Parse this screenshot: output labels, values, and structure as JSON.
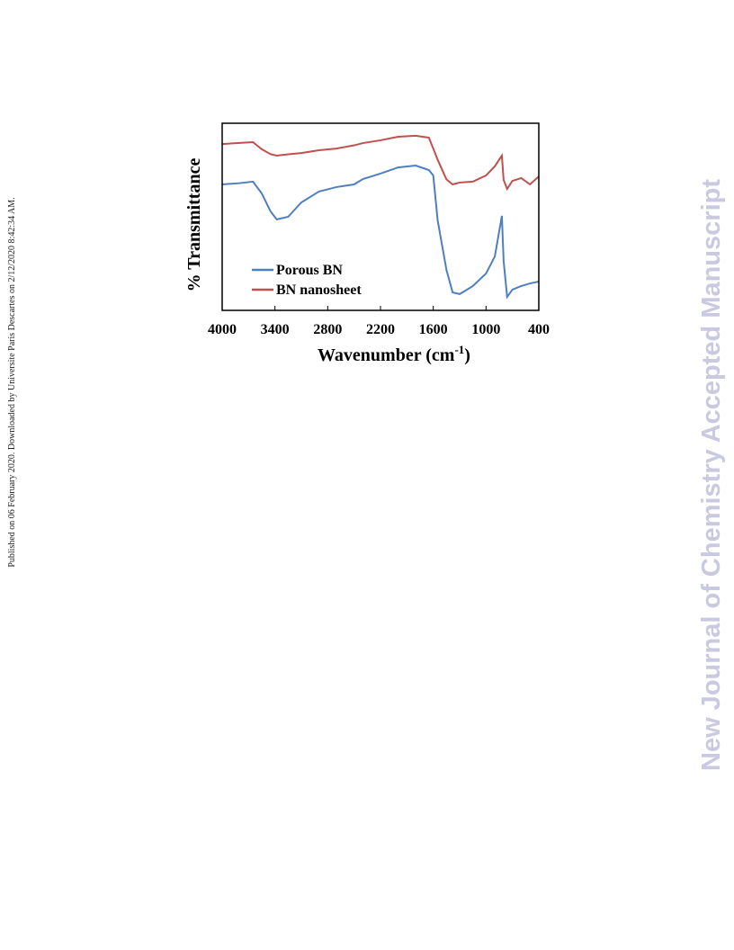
{
  "side_note": "Published on 06 February 2020. Downloaded by Universite Paris Descartes on 2/12/2020 8:42:34 AM.",
  "watermark": "New Journal of Chemistry Accepted Manuscript",
  "chart_data": {
    "type": "line",
    "ylabel": "% Transmittance",
    "xlabel_parts": [
      "Wavenumber (cm",
      "-1",
      ")"
    ],
    "xlim": [
      4000,
      400
    ],
    "xticks": [
      4000,
      3400,
      2800,
      2200,
      1600,
      1000,
      400
    ],
    "ylim": [
      0,
      100
    ],
    "legend": "lower-left",
    "x": [
      4000,
      3800,
      3650,
      3550,
      3450,
      3380,
      3250,
      3100,
      2900,
      2700,
      2500,
      2400,
      2200,
      2000,
      1800,
      1650,
      1600,
      1550,
      1450,
      1380,
      1300,
      1150,
      1000,
      900,
      820,
      800,
      760,
      700,
      600,
      500,
      400
    ],
    "series": [
      {
        "name": "Porous BN",
        "color": "#4f7fbf",
        "values": [
          67.3,
          68,
          68.8,
          62.5,
          52.9,
          48.6,
          50,
          57.7,
          63.5,
          65.9,
          67.3,
          70.2,
          73.1,
          76.4,
          77.4,
          75,
          72.1,
          48.1,
          21.6,
          9.6,
          8.7,
          13,
          19.7,
          28.8,
          50.5,
          26.4,
          7.2,
          11.1,
          13,
          14.4,
          15.4
        ]
      },
      {
        "name": "BN nanosheet",
        "color": "#c0504d",
        "values": [
          88.9,
          89.5,
          89.9,
          86.1,
          83.5,
          82.7,
          83.4,
          84.1,
          85.6,
          86.5,
          88.2,
          89.4,
          90.9,
          92.8,
          93.3,
          92.3,
          86.5,
          80.5,
          70,
          67.3,
          68.3,
          68.8,
          72.1,
          77,
          82.7,
          69.7,
          64.9,
          69.2,
          70.7,
          67.3,
          71.6
        ]
      }
    ]
  }
}
